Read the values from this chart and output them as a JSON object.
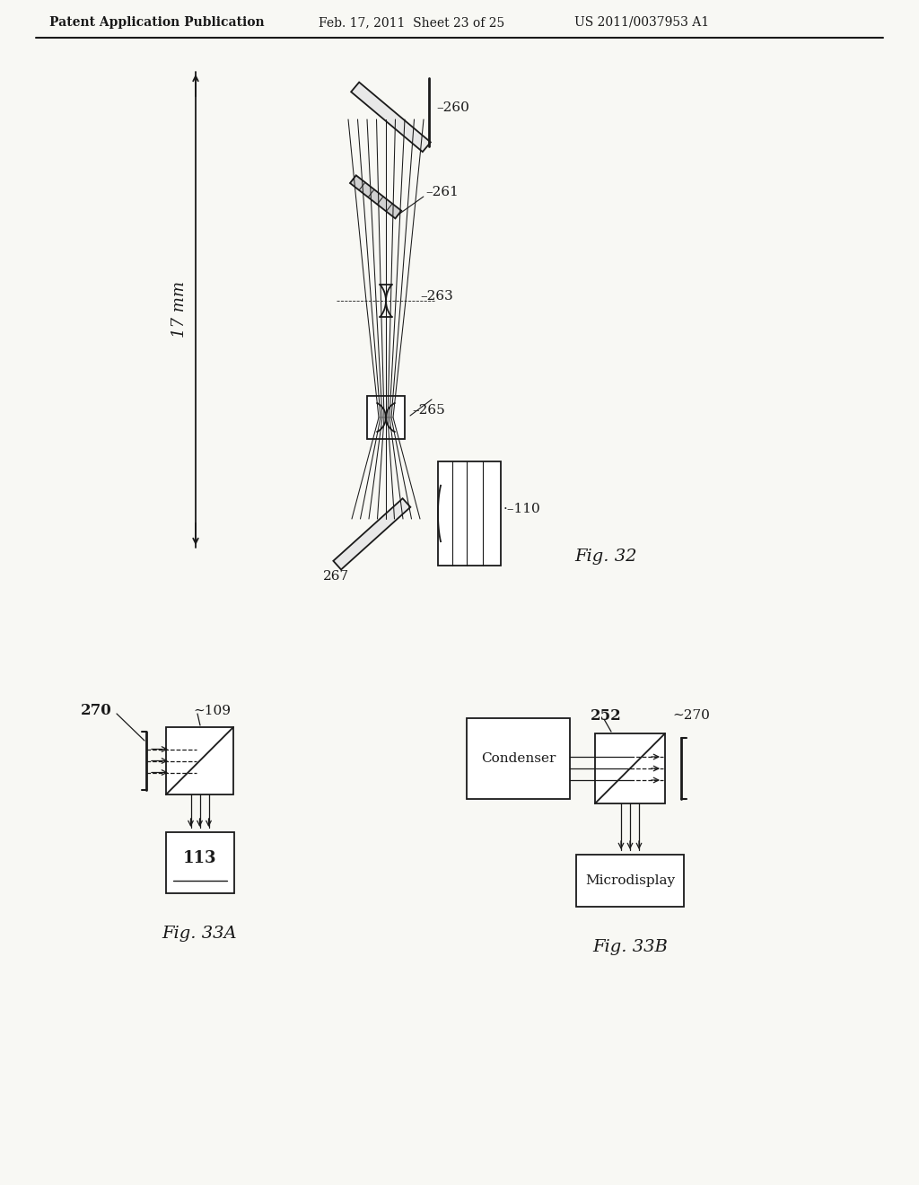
{
  "bg_color": "#f8f8f4",
  "line_color": "#1a1a1a",
  "header_text_left": "Patent Application Publication",
  "header_text_mid": "Feb. 17, 2011  Sheet 23 of 25",
  "header_text_right": "US 2011/0037953 A1",
  "fig32_label": "Fig. 32",
  "fig33a_label": "Fig. 33A",
  "fig33b_label": "Fig. 33B",
  "dim_label": "17 mm"
}
